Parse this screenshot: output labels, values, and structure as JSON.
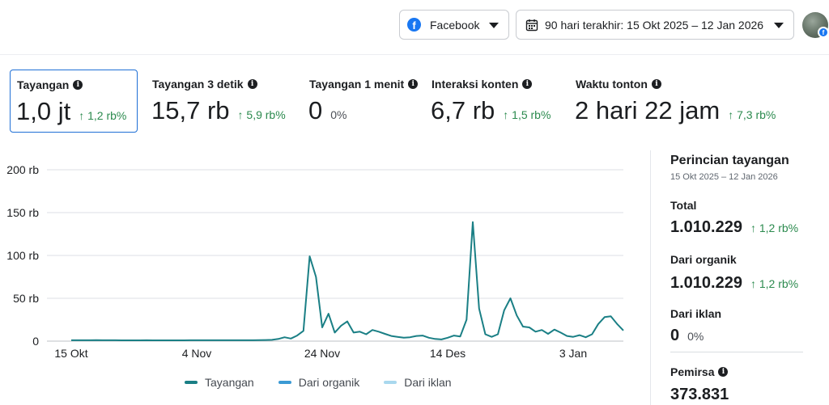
{
  "header": {
    "platform_label": "Facebook",
    "platform_icon": "facebook-icon",
    "date_range_label": "90 hari terakhir: 15 Okt 2025 – 12 Jan 2026",
    "date_icon": "calendar-icon"
  },
  "metrics": [
    {
      "title": "Tayangan",
      "value": "1,0 jt",
      "delta": "↑ 1,2 rb%",
      "active": true
    },
    {
      "title": "Tayangan 3 detik",
      "value": "15,7 rb",
      "delta": "↑ 5,9 rb%"
    },
    {
      "title": "Tayangan 1 menit",
      "value": "0",
      "delta": "0%"
    },
    {
      "title": "Interaksi konten",
      "value": "6,7 rb",
      "delta": "↑ 1,5 rb%"
    },
    {
      "title": "Waktu tonton",
      "value": "2 hari 22 jam",
      "delta": "↑ 7,3 rb%"
    }
  ],
  "colors": {
    "series_total": "#1a7f85",
    "series_organic": "#3b9ad4",
    "series_ads": "#a9d8ee",
    "positive": "#2b8a4e",
    "grid": "#dcdfe4"
  },
  "chart_data": {
    "type": "line",
    "x_ticks": [
      "15 Okt",
      "4 Nov",
      "24 Nov",
      "14 Des",
      "3 Jan"
    ],
    "y_ticks": [
      "0",
      "50 rb",
      "100 rb",
      "150 rb",
      "200 rb"
    ],
    "ylim": [
      0,
      200000
    ],
    "x_start": "2025-10-15",
    "series": [
      {
        "name": "Tayangan",
        "values": [
          1000,
          1000,
          1000,
          1000,
          1200,
          1000,
          1000,
          1000,
          900,
          900,
          900,
          900,
          1000,
          900,
          900,
          900,
          900,
          900,
          900,
          1000,
          1000,
          1000,
          1000,
          1000,
          1000,
          1000,
          1000,
          1000,
          1000,
          1000,
          1200,
          1300,
          1500,
          2500,
          4500,
          3000,
          6500,
          12000,
          99000,
          75000,
          16000,
          32000,
          10000,
          18000,
          23000,
          10000,
          11000,
          8000,
          13000,
          11000,
          8500,
          6000,
          5000,
          4000,
          4500,
          6000,
          6500,
          4000,
          2500,
          2000,
          4000,
          6500,
          5500,
          25000,
          139000,
          38000,
          8000,
          5000,
          8000,
          36000,
          50000,
          30000,
          17000,
          16000,
          11000,
          13000,
          8500,
          13500,
          10000,
          6000,
          5000,
          7000,
          4500,
          8000,
          20000,
          28000,
          29000,
          20000,
          12500
        ]
      },
      {
        "name": "Dari organik",
        "values": []
      },
      {
        "name": "Dari iklan",
        "values": []
      }
    ]
  },
  "sidebar": {
    "title": "Perincian tayangan",
    "subtitle": "15 Okt 2025 – 12 Jan 2026",
    "rows": [
      {
        "label": "Total",
        "value": "1.010.229",
        "delta": "↑ 1,2 rb%"
      },
      {
        "label": "Dari organik",
        "value": "1.010.229",
        "delta": "↑ 1,2 rb%"
      },
      {
        "label": "Dari iklan",
        "value": "0",
        "delta": "0%"
      },
      {
        "label": "Pemirsa",
        "value": "373.831",
        "delta": ""
      }
    ]
  }
}
